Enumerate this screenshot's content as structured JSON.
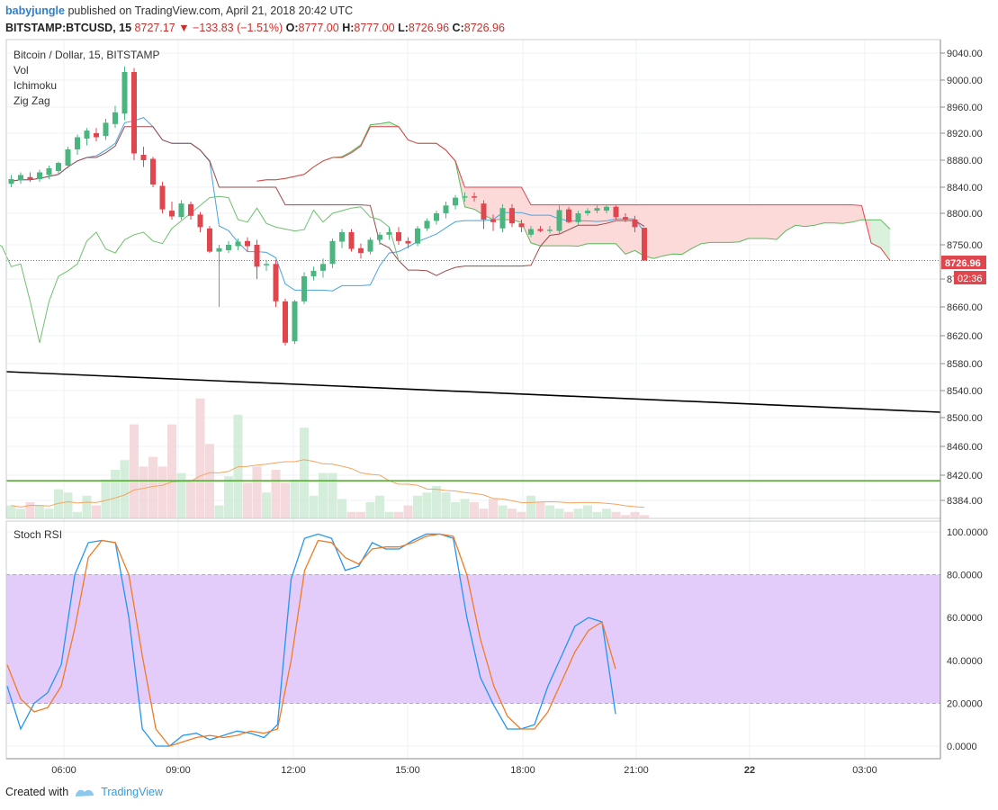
{
  "header": {
    "author": "babyjungle",
    "published_text": "published on TradingView.com, April 21, 2018 20:42 UTC",
    "symbol": "BITSTAMP:BTCUSD, 15",
    "last": "8727.17",
    "change": "−133.83 (−1.51%)",
    "o_label": "O:",
    "o": "8777.00",
    "h_label": "H:",
    "h": "8777.00",
    "l_label": "L:",
    "l": "8726.96",
    "c_label": "C:",
    "c": "8726.96"
  },
  "legend": {
    "title": "Bitcoin / Dollar, 15, BITSTAMP",
    "items": [
      "Vol",
      "Ichimoku",
      "Zig Zag"
    ]
  },
  "price_tag": "8726.96",
  "countdown_tag": "02:36",
  "stoch_title": "Stoch RSI",
  "footer": {
    "created_with": "Created with",
    "brand": "TradingView"
  },
  "colors": {
    "up": "#4bb580",
    "down": "#e0464e",
    "cloud_up": "#d6efd9",
    "cloud_down": "#fcd6d6",
    "stoch_k": "#2196f3",
    "stoch_d": "#f07b24",
    "stoch_band": "#e4ccfa",
    "trend": "#000000",
    "hline": "#5aab3a"
  },
  "chart_data": [
    {
      "type": "candlestick",
      "title": "Bitcoin / Dollar, 15, BITSTAMP",
      "price_axis": [
        9040,
        9000,
        8960,
        8920,
        8880,
        8840,
        8800,
        8750,
        8700,
        8660,
        8620,
        8580,
        8540,
        8500,
        8460,
        8420,
        8384
      ],
      "price_axis_labels": [
        "9040.00",
        "9000.00",
        "8960.00",
        "8920.00",
        "8880.00",
        "8840.00",
        "8800.00",
        "8750.00",
        "8700.00",
        "8660.00",
        "8620.00",
        "8580.00",
        "8540.00",
        "8500.00",
        "8460.00",
        "8420.00",
        "8384.00"
      ],
      "time_axis": [
        "06:00",
        "09:00",
        "12:00",
        "15:00",
        "18:00",
        "21:00",
        "22",
        "03:00"
      ],
      "candles": [
        [
          8845,
          8858,
          8840,
          8852
        ],
        [
          8850,
          8862,
          8845,
          8858
        ],
        [
          8855,
          8862,
          8848,
          8852
        ],
        [
          8852,
          8866,
          8848,
          8862
        ],
        [
          8858,
          8872,
          8852,
          8868
        ],
        [
          8864,
          8878,
          8858,
          8876
        ],
        [
          8872,
          8900,
          8868,
          8896
        ],
        [
          8896,
          8918,
          8888,
          8914
        ],
        [
          8912,
          8928,
          8902,
          8924
        ],
        [
          8920,
          8928,
          8908,
          8914
        ],
        [
          8916,
          8942,
          8910,
          8936
        ],
        [
          8934,
          8962,
          8928,
          8952
        ],
        [
          8950,
          9020,
          8940,
          9012
        ],
        [
          9012,
          9018,
          8880,
          8890
        ],
        [
          8888,
          8900,
          8870,
          8880
        ],
        [
          8882,
          8885,
          8840,
          8844
        ],
        [
          8842,
          8848,
          8800,
          8806
        ],
        [
          8804,
          8818,
          8790,
          8795
        ],
        [
          8794,
          8820,
          8790,
          8815
        ],
        [
          8814,
          8818,
          8790,
          8796
        ],
        [
          8798,
          8802,
          8770,
          8778
        ],
        [
          8776,
          8780,
          8738,
          8740
        ],
        [
          8740,
          8750,
          8660,
          8745
        ],
        [
          8742,
          8756,
          8738,
          8750
        ],
        [
          8748,
          8760,
          8742,
          8755
        ],
        [
          8756,
          8762,
          8740,
          8748
        ],
        [
          8750,
          8758,
          8700,
          8718
        ],
        [
          8720,
          8728,
          8712,
          8722
        ],
        [
          8722,
          8728,
          8660,
          8668
        ],
        [
          8668,
          8672,
          8606,
          8610
        ],
        [
          8612,
          8670,
          8608,
          8668
        ],
        [
          8668,
          8710,
          8664,
          8704
        ],
        [
          8704,
          8718,
          8698,
          8712
        ],
        [
          8712,
          8730,
          8702,
          8722
        ],
        [
          8722,
          8760,
          8716,
          8756
        ],
        [
          8755,
          8775,
          8745,
          8770
        ],
        [
          8770,
          8775,
          8740,
          8744
        ],
        [
          8745,
          8752,
          8730,
          8738
        ],
        [
          8740,
          8762,
          8736,
          8758
        ],
        [
          8758,
          8770,
          8750,
          8766
        ],
        [
          8766,
          8778,
          8758,
          8770
        ],
        [
          8770,
          8778,
          8750,
          8756
        ],
        [
          8756,
          8762,
          8745,
          8752
        ],
        [
          8752,
          8780,
          8748,
          8776
        ],
        [
          8776,
          8792,
          8772,
          8788
        ],
        [
          8788,
          8804,
          8782,
          8800
        ],
        [
          8800,
          8818,
          8792,
          8812
        ],
        [
          8812,
          8828,
          8806,
          8824
        ],
        [
          8824,
          8832,
          8818,
          8826
        ],
        [
          8826,
          8832,
          8818,
          8824
        ],
        [
          8815,
          8820,
          8775,
          8790
        ],
        [
          8790,
          8798,
          8772,
          8786
        ],
        [
          8776,
          8814,
          8770,
          8808
        ],
        [
          8808,
          8814,
          8778,
          8784
        ],
        [
          8784,
          8790,
          8770,
          8778
        ],
        [
          8766,
          8780,
          8762,
          8775
        ],
        [
          8775,
          8780,
          8770,
          8772
        ],
        [
          8772,
          8780,
          8768,
          8774
        ],
        [
          8772,
          8812,
          8768,
          8805
        ],
        [
          8806,
          8810,
          8784,
          8786
        ],
        [
          8786,
          8804,
          8782,
          8800
        ],
        [
          8800,
          8808,
          8796,
          8804
        ],
        [
          8804,
          8812,
          8800,
          8808
        ],
        [
          8804,
          8814,
          8800,
          8810
        ],
        [
          8810,
          8812,
          8790,
          8794
        ],
        [
          8794,
          8800,
          8786,
          8790
        ],
        [
          8790,
          8796,
          8770,
          8778
        ],
        [
          8777,
          8777,
          8726.96,
          8726.96
        ]
      ],
      "volume": [
        4,
        3,
        5,
        4,
        3,
        9,
        8,
        2,
        7,
        4,
        12,
        15,
        18,
        29,
        16,
        19,
        16,
        29,
        14,
        12,
        37,
        23,
        4,
        13,
        32,
        11,
        16,
        8,
        15,
        11,
        12,
        28,
        7,
        14,
        14,
        6,
        2,
        2,
        5,
        7,
        2,
        2,
        4,
        7,
        8,
        10,
        8,
        5,
        6,
        5,
        3,
        6,
        4,
        3,
        2,
        7,
        5,
        4,
        3,
        2,
        3,
        4,
        2,
        3,
        2,
        1,
        2,
        1
      ],
      "last_price": 8726.96,
      "trendline": [
        [
          8568,
          8508
        ]
      ],
      "horizontal_level": 8412
    },
    {
      "type": "line",
      "title": "Stoch RSI",
      "y_axis_labels": [
        "100.0000",
        "80.0000",
        "60.0000",
        "40.0000",
        "20.0000",
        "0.0000"
      ],
      "band": [
        20,
        80
      ],
      "series": [
        {
          "values": [
            28,
            8,
            20,
            25,
            38,
            80,
            95,
            96,
            95,
            60,
            8,
            0,
            0,
            5,
            6,
            3,
            5,
            7,
            6,
            4,
            10,
            78,
            97,
            99,
            97,
            82,
            84,
            95,
            92,
            92,
            96,
            99,
            99,
            97,
            60,
            32,
            19,
            8,
            8,
            10,
            28,
            42,
            56,
            60,
            58,
            15
          ]
        },
        {
          "values": [
            38,
            22,
            16,
            18,
            28,
            55,
            88,
            96,
            95,
            80,
            42,
            8,
            0,
            2,
            4,
            5,
            4,
            5,
            7,
            6,
            8,
            40,
            82,
            96,
            95,
            88,
            85,
            92,
            93,
            93,
            95,
            98,
            99,
            98,
            80,
            50,
            28,
            14,
            8,
            8,
            16,
            30,
            44,
            54,
            58,
            36
          ]
        }
      ]
    }
  ]
}
